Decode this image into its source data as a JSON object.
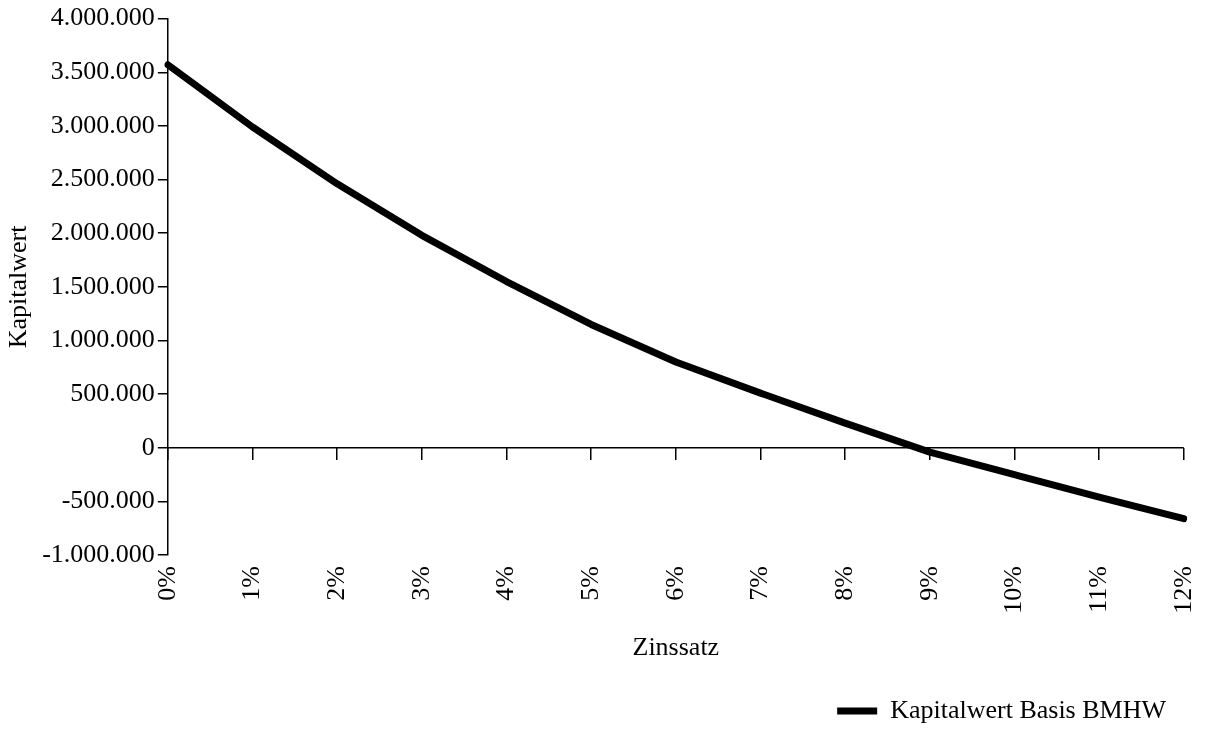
{
  "chart_data": {
    "type": "line",
    "xlabel": "Zinssatz",
    "ylabel": "Kapitalwert",
    "categories": [
      "0%",
      "1%",
      "2%",
      "3%",
      "4%",
      "5%",
      "6%",
      "7%",
      "8%",
      "9%",
      "10%",
      "11%",
      "12%"
    ],
    "series": [
      {
        "name": "Kapitalwert Basis BMHW",
        "color": "#000000",
        "values": [
          3570000,
          2990000,
          2460000,
          1980000,
          1550000,
          1150000,
          800000,
          510000,
          230000,
          -40000,
          -250000,
          -460000,
          -660000
        ]
      }
    ],
    "ylim": [
      -1000000,
      4000000
    ],
    "yticks": [
      {
        "value": -1000000,
        "label": "-1.000.000"
      },
      {
        "value": -500000,
        "label": "-500.000"
      },
      {
        "value": 0,
        "label": "0"
      },
      {
        "value": 500000,
        "label": "500.000"
      },
      {
        "value": 1000000,
        "label": "1.000.000"
      },
      {
        "value": 1500000,
        "label": "1.500.000"
      },
      {
        "value": 2000000,
        "label": "2.000.000"
      },
      {
        "value": 2500000,
        "label": "2.500.000"
      },
      {
        "value": 3000000,
        "label": "3.000.000"
      },
      {
        "value": 3500000,
        "label": "3.500.000"
      },
      {
        "value": 4000000,
        "label": "4.000.000"
      }
    ],
    "ref_lines": [
      {
        "axis": "y",
        "value": 0,
        "color": "#000000",
        "line_style": "solid"
      }
    ],
    "grid": false,
    "legend": "bottom right",
    "marker": "none",
    "line_style": "solid"
  }
}
